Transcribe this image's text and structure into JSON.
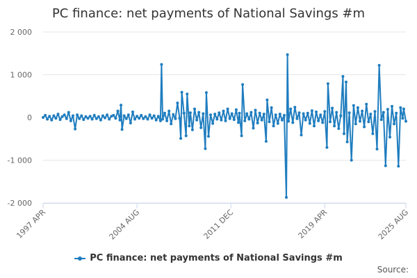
{
  "title": "PC finance: net payments of National Savings #m",
  "source_label": "Source:",
  "colors": {
    "series": "#1f7dbf",
    "grid": "#e6e6e6",
    "axis": "#ccd6eb",
    "text": "#333333"
  },
  "chart_data": {
    "type": "line",
    "title": "PC finance: net payments of National Savings #m",
    "xlabel": "",
    "ylabel": "",
    "xlim": [
      "1997-04",
      "2025-08"
    ],
    "ylim": [
      -2000,
      2000
    ],
    "y_ticks": [
      {
        "value": 2000,
        "label": "2 000"
      },
      {
        "value": 1000,
        "label": "1 000"
      },
      {
        "value": 0,
        "label": "0"
      },
      {
        "value": -1000,
        "label": "-1 000"
      },
      {
        "value": -2000,
        "label": "-2 000"
      }
    ],
    "x_ticks": [
      {
        "value": "1997-04",
        "label": "1997 APR"
      },
      {
        "value": "2004-08",
        "label": "2004 AUG"
      },
      {
        "value": "2011-12",
        "label": "2011 DEC"
      },
      {
        "value": "2019-04",
        "label": "2019 APR"
      },
      {
        "value": "2025-08",
        "label": "2025 AUG"
      }
    ],
    "grid": true,
    "legend_position": "bottom",
    "series": [
      {
        "name": "PC finance: net payments of National Savings #m",
        "points": [
          [
            "1997-04",
            0
          ],
          [
            "1997-06",
            50
          ],
          [
            "1997-08",
            -40
          ],
          [
            "1997-10",
            30
          ],
          [
            "1997-12",
            -60
          ],
          [
            "1998-02",
            40
          ],
          [
            "1998-04",
            -20
          ],
          [
            "1998-06",
            80
          ],
          [
            "1998-08",
            -50
          ],
          [
            "1998-10",
            20
          ],
          [
            "1998-12",
            60
          ],
          [
            "1999-02",
            -30
          ],
          [
            "1999-04",
            120
          ],
          [
            "1999-06",
            -80
          ],
          [
            "1999-08",
            40
          ],
          [
            "1999-10",
            -270
          ],
          [
            "1999-12",
            60
          ],
          [
            "2000-02",
            -30
          ],
          [
            "2000-04",
            40
          ],
          [
            "2000-06",
            -50
          ],
          [
            "2000-08",
            20
          ],
          [
            "2000-10",
            -20
          ],
          [
            "2000-12",
            30
          ],
          [
            "2001-02",
            -40
          ],
          [
            "2001-04",
            50
          ],
          [
            "2001-06",
            -30
          ],
          [
            "2001-08",
            20
          ],
          [
            "2001-10",
            -60
          ],
          [
            "2001-12",
            40
          ],
          [
            "2002-02",
            -10
          ],
          [
            "2002-04",
            60
          ],
          [
            "2002-06",
            -40
          ],
          [
            "2002-08",
            30
          ],
          [
            "2002-10",
            50
          ],
          [
            "2002-12",
            -20
          ],
          [
            "2003-02",
            150
          ],
          [
            "2003-04",
            -60
          ],
          [
            "2003-05",
            290
          ],
          [
            "2003-06",
            -280
          ],
          [
            "2003-08",
            40
          ],
          [
            "2003-10",
            -30
          ],
          [
            "2003-12",
            60
          ],
          [
            "2004-02",
            -130
          ],
          [
            "2004-04",
            130
          ],
          [
            "2004-06",
            -40
          ],
          [
            "2004-08",
            30
          ],
          [
            "2004-10",
            -20
          ],
          [
            "2004-12",
            50
          ],
          [
            "2005-02",
            -30
          ],
          [
            "2005-04",
            20
          ],
          [
            "2005-06",
            -40
          ],
          [
            "2005-08",
            60
          ],
          [
            "2005-10",
            -20
          ],
          [
            "2005-12",
            40
          ],
          [
            "2006-02",
            -60
          ],
          [
            "2006-04",
            30
          ],
          [
            "2006-06",
            -80
          ],
          [
            "2006-07",
            1240
          ],
          [
            "2006-08",
            -40
          ],
          [
            "2006-10",
            100
          ],
          [
            "2006-12",
            -80
          ],
          [
            "2007-02",
            150
          ],
          [
            "2007-04",
            -150
          ],
          [
            "2007-06",
            70
          ],
          [
            "2007-08",
            -30
          ],
          [
            "2007-10",
            340
          ],
          [
            "2007-12",
            -20
          ],
          [
            "2008-01",
            -490
          ],
          [
            "2008-02",
            590
          ],
          [
            "2008-04",
            100
          ],
          [
            "2008-06",
            -430
          ],
          [
            "2008-07",
            550
          ],
          [
            "2008-09",
            -200
          ],
          [
            "2008-10",
            110
          ],
          [
            "2008-12",
            -290
          ],
          [
            "2009-02",
            200
          ],
          [
            "2009-04",
            -60
          ],
          [
            "2009-06",
            120
          ],
          [
            "2009-08",
            -240
          ],
          [
            "2009-10",
            90
          ],
          [
            "2009-12",
            -730
          ],
          [
            "2010-01",
            580
          ],
          [
            "2010-03",
            -440
          ],
          [
            "2010-05",
            60
          ],
          [
            "2010-07",
            -140
          ],
          [
            "2010-09",
            80
          ],
          [
            "2010-11",
            -40
          ],
          [
            "2011-01",
            110
          ],
          [
            "2011-03",
            -60
          ],
          [
            "2011-05",
            150
          ],
          [
            "2011-07",
            -80
          ],
          [
            "2011-09",
            200
          ],
          [
            "2011-11",
            -30
          ],
          [
            "2012-01",
            90
          ],
          [
            "2012-03",
            -50
          ],
          [
            "2012-05",
            180
          ],
          [
            "2012-07",
            -120
          ],
          [
            "2012-08",
            100
          ],
          [
            "2012-10",
            -430
          ],
          [
            "2012-11",
            770
          ],
          [
            "2013-01",
            -80
          ],
          [
            "2013-03",
            90
          ],
          [
            "2013-05",
            -40
          ],
          [
            "2013-07",
            120
          ],
          [
            "2013-09",
            -250
          ],
          [
            "2013-11",
            170
          ],
          [
            "2014-01",
            -130
          ],
          [
            "2014-03",
            100
          ],
          [
            "2014-05",
            -60
          ],
          [
            "2014-07",
            80
          ],
          [
            "2014-09",
            -560
          ],
          [
            "2014-10",
            410
          ],
          [
            "2014-12",
            -100
          ],
          [
            "2015-02",
            230
          ],
          [
            "2015-04",
            -200
          ],
          [
            "2015-06",
            60
          ],
          [
            "2015-08",
            -140
          ],
          [
            "2015-10",
            80
          ],
          [
            "2015-12",
            -60
          ],
          [
            "2016-02",
            50
          ],
          [
            "2016-04",
            -1870
          ],
          [
            "2016-05",
            1470
          ],
          [
            "2016-06",
            -90
          ],
          [
            "2016-08",
            200
          ],
          [
            "2016-10",
            -120
          ],
          [
            "2016-12",
            240
          ],
          [
            "2017-02",
            -30
          ],
          [
            "2017-04",
            110
          ],
          [
            "2017-06",
            -410
          ],
          [
            "2017-08",
            90
          ],
          [
            "2017-10",
            -60
          ],
          [
            "2017-12",
            100
          ],
          [
            "2018-02",
            -140
          ],
          [
            "2018-04",
            160
          ],
          [
            "2018-06",
            -200
          ],
          [
            "2018-08",
            130
          ],
          [
            "2018-10",
            -80
          ],
          [
            "2018-12",
            60
          ],
          [
            "2019-02",
            -120
          ],
          [
            "2019-04",
            140
          ],
          [
            "2019-06",
            -700
          ],
          [
            "2019-07",
            790
          ],
          [
            "2019-09",
            -100
          ],
          [
            "2019-11",
            220
          ],
          [
            "2020-01",
            -200
          ],
          [
            "2020-03",
            120
          ],
          [
            "2020-05",
            -260
          ],
          [
            "2020-07",
            40
          ],
          [
            "2020-09",
            960
          ],
          [
            "2020-10",
            -380
          ],
          [
            "2020-12",
            830
          ],
          [
            "2021-01",
            -570
          ],
          [
            "2021-03",
            110
          ],
          [
            "2021-05",
            -1000
          ],
          [
            "2021-07",
            280
          ],
          [
            "2021-09",
            -150
          ],
          [
            "2021-11",
            230
          ],
          [
            "2022-01",
            -90
          ],
          [
            "2022-03",
            150
          ],
          [
            "2022-05",
            -220
          ],
          [
            "2022-07",
            310
          ],
          [
            "2022-09",
            -100
          ],
          [
            "2022-11",
            80
          ],
          [
            "2023-01",
            -380
          ],
          [
            "2023-03",
            140
          ],
          [
            "2023-05",
            -740
          ],
          [
            "2023-07",
            1220
          ],
          [
            "2023-09",
            -50
          ],
          [
            "2023-11",
            120
          ],
          [
            "2024-01",
            -1130
          ],
          [
            "2024-03",
            190
          ],
          [
            "2024-05",
            -460
          ],
          [
            "2024-07",
            260
          ],
          [
            "2024-09",
            -150
          ],
          [
            "2024-11",
            100
          ],
          [
            "2025-01",
            -1140
          ],
          [
            "2025-03",
            230
          ],
          [
            "2025-05",
            -20
          ],
          [
            "2025-06",
            200
          ],
          [
            "2025-08",
            -90
          ]
        ]
      }
    ]
  }
}
